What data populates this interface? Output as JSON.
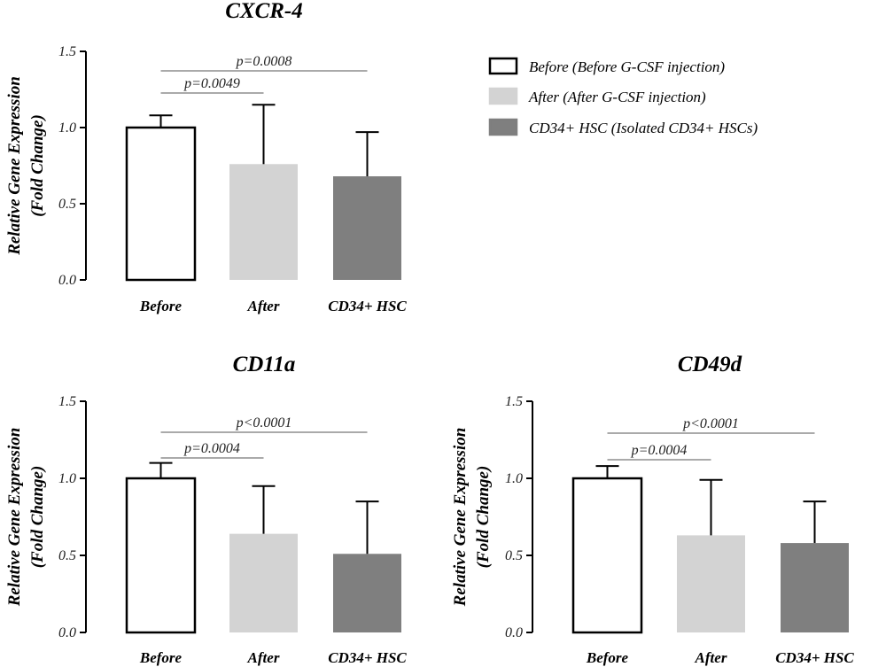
{
  "chart_data": [
    {
      "type": "bar",
      "title": "CXCR-4",
      "ylabel": [
        "Relative Gene Expression",
        "(Fold Change)"
      ],
      "yticks": [
        "0.0",
        "0.5",
        "1.0",
        "1.5"
      ],
      "ylim": [
        0,
        1.5
      ],
      "categories": [
        "Before",
        "After",
        "CD34+ HSC"
      ],
      "values": [
        1.0,
        0.76,
        0.68
      ],
      "error_upper": [
        1.08,
        1.15,
        0.97
      ],
      "comparisons": [
        {
          "from": 0,
          "to": 1,
          "label": "p=0.0049"
        },
        {
          "from": 0,
          "to": 2,
          "label": "p=0.0008"
        }
      ]
    },
    {
      "type": "bar",
      "title": "CD11a",
      "ylabel": [
        "Relative Gene Expression",
        "(Fold Change)"
      ],
      "yticks": [
        "0.0",
        "0.5",
        "1.0",
        "1.5"
      ],
      "ylim": [
        0,
        1.5
      ],
      "categories": [
        "Before",
        "After",
        "CD34+ HSC"
      ],
      "values": [
        1.0,
        0.64,
        0.51
      ],
      "error_upper": [
        1.1,
        0.95,
        0.85
      ],
      "comparisons": [
        {
          "from": 0,
          "to": 1,
          "label": "p=0.0004"
        },
        {
          "from": 0,
          "to": 2,
          "label": "p<0.0001"
        }
      ]
    },
    {
      "type": "bar",
      "title": "CD49d",
      "ylabel": [
        "Relative Gene Expression",
        "(Fold Change)"
      ],
      "yticks": [
        "0.0",
        "0.5",
        "1.0",
        "1.5"
      ],
      "ylim": [
        0,
        1.5
      ],
      "categories": [
        "Before",
        "After",
        "CD34+ HSC"
      ],
      "values": [
        1.0,
        0.63,
        0.58
      ],
      "error_upper": [
        1.08,
        0.99,
        0.85
      ],
      "comparisons": [
        {
          "from": 0,
          "to": 1,
          "label": "p=0.0004"
        },
        {
          "from": 0,
          "to": 2,
          "label": "p<0.0001"
        }
      ]
    }
  ],
  "legend": {
    "placement": "top-right",
    "items": [
      {
        "label": "Before (Before G-CSF injection)",
        "fill": "#ffffff",
        "stroke": "#000000"
      },
      {
        "label": "After (After G-CSF injection)",
        "fill": "#d3d3d3",
        "stroke": "#d3d3d3"
      },
      {
        "label": "CD34+ HSC (Isolated CD34+ HSCs)",
        "fill": "#7f7f7f",
        "stroke": "#7f7f7f"
      }
    ]
  },
  "colors": {
    "bar_fills": [
      "#ffffff",
      "#d3d3d3",
      "#7f7f7f"
    ],
    "bar_strokes": [
      "#000000",
      "#d3d3d3",
      "#7f7f7f"
    ],
    "axis": "#000000",
    "bracket": "#555555"
  }
}
